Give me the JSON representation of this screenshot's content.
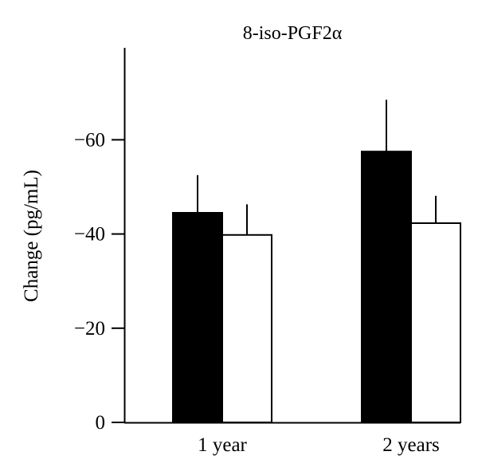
{
  "chart_data": {
    "type": "bar",
    "title": "8-iso-PGF2α",
    "xlabel": "",
    "ylabel": "Change (pg/mL)",
    "categories": [
      "1 year",
      "2 years"
    ],
    "series": [
      {
        "fill": "#000000",
        "values": [
          -44.5,
          -57.5
        ],
        "errors": [
          8.0,
          11.0
        ]
      },
      {
        "fill": "#ffffff",
        "values": [
          -39.8,
          -42.3
        ],
        "errors": [
          6.5,
          5.8
        ]
      }
    ],
    "yticks": [
      {
        "value": 0,
        "label": "0"
      },
      {
        "value": -20,
        "label": "−20"
      },
      {
        "value": -40,
        "label": "−40"
      },
      {
        "value": -60,
        "label": "−60"
      }
    ],
    "ylim": [
      0,
      -80
    ],
    "y_axis_inverted": true,
    "grid": false,
    "legend": "none"
  }
}
